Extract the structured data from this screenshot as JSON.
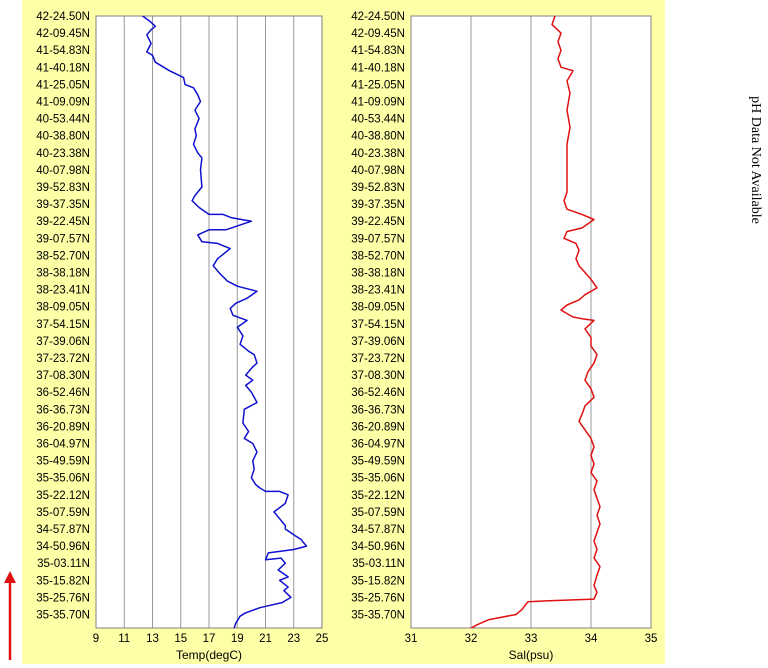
{
  "chart_data": [
    {
      "type": "line",
      "xlabel": "Temp(degC)",
      "xlim": [
        9,
        25
      ],
      "xticks": [
        9,
        11,
        13,
        15,
        17,
        19,
        21,
        23,
        25
      ],
      "grid": true,
      "line_color": "#1010d0",
      "y_categories": [
        "42-24.50N",
        "42-09.45N",
        "41-54.83N",
        "41-40.18N",
        "41-25.05N",
        "41-09.09N",
        "40-53.44N",
        "40-38.80N",
        "40-23.38N",
        "40-07.98N",
        "39-52.83N",
        "39-37.35N",
        "39-22.45N",
        "39-07.57N",
        "38-52.70N",
        "38-38.18N",
        "38-23.41N",
        "38-09.05N",
        "37-54.15N",
        "37-39.06N",
        "37-23.72N",
        "37-08.30N",
        "36-52.46N",
        "36-36.73N",
        "36-20.89N",
        "36-04.97N",
        "35-49.59N",
        "35-35.06N",
        "35-22.12N",
        "35-07.59N",
        "34-57.87N",
        "34-50.96N",
        "35-03.11N",
        "35-15.82N",
        "35-25.76N",
        "35-35.70N"
      ],
      "series": [
        {
          "points": [
            [
              10.6,
              -0.9
            ],
            [
              12.0,
              -0.85
            ],
            [
              12.3,
              0.0
            ],
            [
              12.8,
              0.3
            ],
            [
              13.2,
              0.6
            ],
            [
              12.9,
              0.8
            ],
            [
              12.6,
              1.1
            ],
            [
              12.9,
              1.6
            ],
            [
              12.6,
              2.1
            ],
            [
              13.0,
              2.3
            ],
            [
              13.2,
              2.7
            ],
            [
              14.2,
              3.2
            ],
            [
              15.2,
              3.6
            ],
            [
              15.3,
              4.0
            ],
            [
              15.9,
              4.2
            ],
            [
              16.2,
              4.6
            ],
            [
              16.4,
              5.0
            ],
            [
              16.0,
              5.5
            ],
            [
              16.3,
              6.0
            ],
            [
              16.0,
              6.6
            ],
            [
              16.1,
              7.0
            ],
            [
              15.9,
              7.5
            ],
            [
              16.2,
              8.0
            ],
            [
              16.5,
              8.3
            ],
            [
              16.4,
              9.0
            ],
            [
              16.5,
              10.0
            ],
            [
              16.0,
              10.5
            ],
            [
              15.8,
              10.8
            ],
            [
              16.3,
              11.2
            ],
            [
              17.0,
              11.6
            ],
            [
              18.0,
              11.6
            ],
            [
              18.6,
              11.8
            ],
            [
              20.0,
              12.0
            ],
            [
              18.2,
              12.5
            ],
            [
              17.0,
              12.5
            ],
            [
              16.2,
              12.8
            ],
            [
              16.5,
              13.2
            ],
            [
              17.6,
              13.3
            ],
            [
              18.5,
              13.6
            ],
            [
              17.6,
              14.2
            ],
            [
              17.3,
              14.6
            ],
            [
              17.7,
              15.0
            ],
            [
              18.3,
              15.5
            ],
            [
              19.0,
              15.8
            ],
            [
              20.4,
              16.1
            ],
            [
              19.7,
              16.5
            ],
            [
              18.9,
              16.8
            ],
            [
              18.5,
              17.1
            ],
            [
              18.7,
              17.5
            ],
            [
              19.7,
              17.8
            ],
            [
              19.0,
              18.2
            ],
            [
              19.4,
              18.7
            ],
            [
              19.2,
              19.2
            ],
            [
              19.8,
              19.6
            ],
            [
              20.2,
              19.8
            ],
            [
              20.4,
              20.3
            ],
            [
              20.0,
              20.6
            ],
            [
              19.6,
              21.0
            ],
            [
              20.1,
              21.3
            ],
            [
              19.6,
              21.6
            ],
            [
              20.0,
              22.0
            ],
            [
              20.4,
              22.6
            ],
            [
              19.5,
              23.0
            ],
            [
              19.4,
              23.8
            ],
            [
              19.8,
              24.3
            ],
            [
              19.5,
              24.7
            ],
            [
              20.1,
              25.0
            ],
            [
              20.4,
              25.5
            ],
            [
              20.1,
              26.0
            ],
            [
              20.2,
              26.5
            ],
            [
              20.0,
              27.0
            ],
            [
              20.3,
              27.4
            ],
            [
              20.6,
              27.6
            ],
            [
              21.0,
              27.8
            ],
            [
              22.0,
              27.8
            ],
            [
              22.6,
              28.0
            ],
            [
              22.4,
              28.5
            ],
            [
              21.6,
              29.0
            ],
            [
              22.0,
              29.4
            ],
            [
              22.4,
              29.8
            ],
            [
              22.4,
              30.0
            ],
            [
              23.1,
              30.4
            ],
            [
              23.5,
              30.6
            ],
            [
              23.9,
              31.0
            ],
            [
              23.0,
              31.2
            ],
            [
              21.2,
              31.4
            ],
            [
              21.0,
              31.8
            ],
            [
              22.1,
              31.7
            ],
            [
              22.4,
              32.0
            ],
            [
              21.9,
              32.4
            ],
            [
              22.6,
              32.8
            ],
            [
              22.0,
              33.0
            ],
            [
              22.6,
              33.4
            ],
            [
              22.3,
              33.6
            ],
            [
              22.8,
              34.0
            ],
            [
              22.2,
              34.3
            ],
            [
              20.6,
              34.6
            ],
            [
              19.6,
              34.9
            ],
            [
              19.2,
              35.1
            ],
            [
              18.9,
              35.5
            ],
            [
              18.7,
              36.0
            ],
            [
              18.4,
              36.5
            ],
            [
              18.2,
              37.0
            ],
            [
              18.4,
              37.6
            ],
            [
              18.1,
              38.0
            ],
            [
              18.3,
              38.5
            ],
            [
              18.1,
              39.0
            ],
            [
              18.2,
              39.4
            ]
          ]
        }
      ]
    },
    {
      "type": "line",
      "xlabel": "Sal(psu)",
      "xlim": [
        31,
        35
      ],
      "xticks": [
        31,
        32,
        33,
        34,
        35
      ],
      "grid": true,
      "line_color": "#e01010",
      "y_categories": [
        "42-24.50N",
        "42-09.45N",
        "41-54.83N",
        "41-40.18N",
        "41-25.05N",
        "41-09.09N",
        "40-53.44N",
        "40-38.80N",
        "40-23.38N",
        "40-07.98N",
        "39-52.83N",
        "39-37.35N",
        "39-22.45N",
        "39-07.57N",
        "38-52.70N",
        "38-38.18N",
        "38-23.41N",
        "38-09.05N",
        "37-54.15N",
        "37-39.06N",
        "37-23.72N",
        "37-08.30N",
        "36-52.46N",
        "36-36.73N",
        "36-20.89N",
        "36-04.97N",
        "35-49.59N",
        "35-35.06N",
        "35-22.12N",
        "35-07.59N",
        "34-57.87N",
        "34-50.96N",
        "35-03.11N",
        "35-15.82N",
        "35-25.76N",
        "35-35.70N"
      ],
      "series": [
        {
          "points": [
            [
              32.8,
              -0.9
            ],
            [
              33.3,
              -0.8
            ],
            [
              33.4,
              -0.5
            ],
            [
              33.4,
              0.0
            ],
            [
              33.35,
              0.5
            ],
            [
              33.5,
              1.0
            ],
            [
              33.45,
              1.5
            ],
            [
              33.5,
              2.0
            ],
            [
              33.45,
              2.5
            ],
            [
              33.5,
              3.0
            ],
            [
              33.7,
              3.2
            ],
            [
              33.6,
              3.8
            ],
            [
              33.65,
              4.5
            ],
            [
              33.6,
              5.5
            ],
            [
              33.65,
              6.5
            ],
            [
              33.6,
              7.5
            ],
            [
              33.6,
              8.5
            ],
            [
              33.6,
              9.5
            ],
            [
              33.6,
              10.3
            ],
            [
              33.55,
              10.8
            ],
            [
              33.6,
              11.3
            ],
            [
              33.85,
              11.6
            ],
            [
              34.05,
              11.9
            ],
            [
              33.85,
              12.4
            ],
            [
              33.6,
              12.6
            ],
            [
              33.55,
              13.0
            ],
            [
              33.75,
              13.3
            ],
            [
              33.8,
              13.7
            ],
            [
              33.75,
              14.2
            ],
            [
              33.8,
              14.6
            ],
            [
              33.9,
              15.0
            ],
            [
              34.0,
              15.4
            ],
            [
              34.1,
              15.9
            ],
            [
              33.9,
              16.3
            ],
            [
              33.8,
              16.6
            ],
            [
              33.6,
              16.9
            ],
            [
              33.5,
              17.2
            ],
            [
              33.7,
              17.6
            ],
            [
              33.85,
              17.7
            ],
            [
              34.05,
              17.8
            ],
            [
              33.9,
              18.3
            ],
            [
              34.0,
              18.8
            ],
            [
              34.0,
              19.3
            ],
            [
              34.1,
              19.8
            ],
            [
              34.05,
              20.3
            ],
            [
              33.95,
              20.8
            ],
            [
              33.9,
              21.3
            ],
            [
              34.0,
              21.8
            ],
            [
              34.05,
              22.3
            ],
            [
              33.9,
              22.8
            ],
            [
              33.85,
              23.3
            ],
            [
              33.8,
              23.7
            ],
            [
              33.9,
              24.2
            ],
            [
              34.0,
              24.7
            ],
            [
              34.05,
              25.2
            ],
            [
              34.0,
              25.7
            ],
            [
              34.05,
              26.2
            ],
            [
              34.0,
              26.7
            ],
            [
              34.1,
              27.2
            ],
            [
              34.05,
              27.7
            ],
            [
              34.1,
              28.2
            ],
            [
              34.15,
              28.7
            ],
            [
              34.1,
              29.2
            ],
            [
              34.15,
              29.7
            ],
            [
              34.1,
              30.2
            ],
            [
              34.05,
              30.7
            ],
            [
              34.1,
              31.2
            ],
            [
              34.05,
              31.7
            ],
            [
              34.15,
              32.2
            ],
            [
              34.1,
              32.7
            ],
            [
              34.05,
              33.3
            ],
            [
              34.1,
              33.7
            ],
            [
              34.05,
              34.1
            ],
            [
              33.3,
              34.2
            ],
            [
              32.95,
              34.25
            ],
            [
              32.85,
              34.7
            ],
            [
              32.75,
              35.0
            ],
            [
              32.3,
              35.3
            ],
            [
              32.1,
              35.6
            ],
            [
              31.9,
              36.0
            ],
            [
              31.55,
              36.4
            ],
            [
              31.4,
              36.8
            ],
            [
              31.0,
              37.2
            ]
          ]
        }
      ]
    }
  ],
  "note": "pH Data Not Available",
  "colors": {
    "panel_bg": "#ffffa8",
    "plot_bg": "#ffffff",
    "grid": "#999999",
    "arrow": "#e01010"
  }
}
